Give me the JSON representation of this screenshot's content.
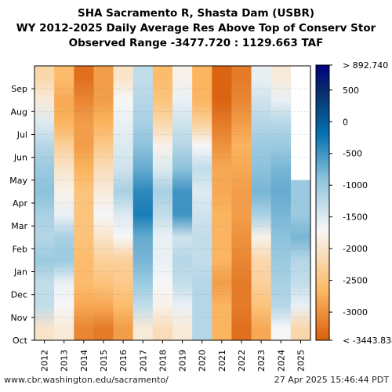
{
  "title": {
    "line1": "SHA Sacramento R, Shasta Dam (USBR)",
    "line2": "WY 2012-2025 Daily Average Res Above Top of Conserv Stor",
    "line3": "Observed Range -3477.720 : 1129.663 TAF"
  },
  "footer": {
    "url": "www.cbr.washington.edu/sacramento/",
    "timestamp": "27 Apr 2025 15:46:44 PDT"
  },
  "chart_data": {
    "type": "heatmap",
    "x_categories": [
      "2012",
      "2013",
      "2014",
      "2015",
      "2016",
      "2017",
      "2018",
      "2019",
      "2020",
      "2021",
      "2022",
      "2023",
      "2024",
      "2025"
    ],
    "y_ticks": [
      "Oct",
      "Nov",
      "Dec",
      "Jan",
      "Feb",
      "Mar",
      "Apr",
      "May",
      "Jun",
      "Jul",
      "Aug",
      "Sep"
    ],
    "month_order": [
      "Oct",
      "Nov",
      "Dec",
      "Jan",
      "Feb",
      "Mar",
      "Apr",
      "May",
      "Jun",
      "Jul",
      "Aug",
      "Sep"
    ],
    "monthly_values": [
      [
        -2000,
        -1300,
        -1300,
        -1000,
        -1200,
        -1100,
        -900,
        -1000,
        -1200,
        -1500,
        -1900,
        -2200
      ],
      [
        -1900,
        -1700,
        -1600,
        -1000,
        -1100,
        -1600,
        -1800,
        -2000,
        -2300,
        -2700,
        -2800,
        -2600
      ],
      [
        -3100,
        -2800,
        -2600,
        -2600,
        -2500,
        -2500,
        -2500,
        -2700,
        -2900,
        -2900,
        -3100,
        -3300
      ],
      [
        -3200,
        -2800,
        -2500,
        -2300,
        -2000,
        -1700,
        -1900,
        -2100,
        -2400,
        -2700,
        -2900,
        -2900
      ],
      [
        -2900,
        -2600,
        -2400,
        -2300,
        -1700,
        -1500,
        -1100,
        -1400,
        -1500,
        -1600,
        -1700,
        -2000
      ],
      [
        -1900,
        -1300,
        -1000,
        -800,
        -700,
        -300,
        -400,
        -700,
        -900,
        -1100,
        -1200,
        -1300
      ],
      [
        -2100,
        -1800,
        -1700,
        -1600,
        -1600,
        -1300,
        -1100,
        -1500,
        -1800,
        -2200,
        -2500,
        -2600
      ],
      [
        -1900,
        -1600,
        -1300,
        -1200,
        -1400,
        -500,
        -500,
        -900,
        -1200,
        -1400,
        -1600,
        -1800
      ],
      [
        -1200,
        -1200,
        -1200,
        -1300,
        -1300,
        -1400,
        -1500,
        -1300,
        -1700,
        -2300,
        -2700,
        -2700
      ],
      [
        -2700,
        -2700,
        -2900,
        -2700,
        -2700,
        -2700,
        -2800,
        -2800,
        -3000,
        -3200,
        -3400,
        -3400
      ],
      [
        -3300,
        -3200,
        -3200,
        -3100,
        -3000,
        -2900,
        -2900,
        -2800,
        -2700,
        -2900,
        -3100,
        -3200
      ],
      [
        -2800,
        -2500,
        -2300,
        -2200,
        -1800,
        -1100,
        -800,
        -900,
        -1000,
        -1200,
        -1400,
        -1600
      ],
      [
        -1700,
        -1200,
        -1100,
        -1000,
        -900,
        -800,
        -700,
        -800,
        -1000,
        -1200,
        -1600,
        -1900
      ],
      [
        -2200,
        -1600,
        -1300,
        -1200,
        -800,
        -1000,
        -1000,
        null,
        null,
        null,
        null,
        null
      ]
    ],
    "colorbar": {
      "max_label": "> 892.740",
      "min_label": "< -3443.834",
      "ticks": [
        "500",
        "0",
        "-500",
        "-1000",
        "-1500",
        "-2000",
        "-2500",
        "-3000"
      ],
      "range": [
        -3443.834,
        892.74
      ],
      "colors": [
        "#d95f0e",
        "#fdb863",
        "#f7f7f7",
        "#92c5de",
        "#0571b0",
        "#08306b",
        "#000080"
      ]
    }
  }
}
